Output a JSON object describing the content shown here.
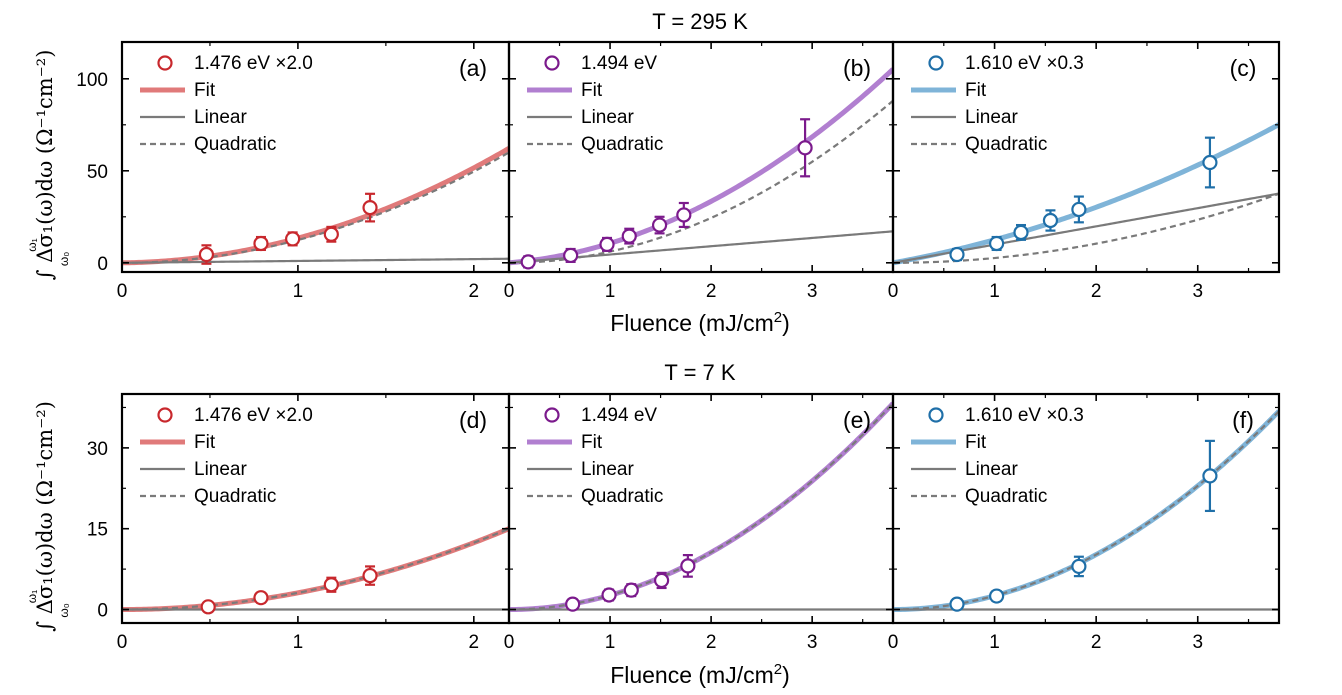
{
  "figure": {
    "xlabel": "Fluence (mJ/cm",
    "xlabel_sup": "2",
    "xlabel_close": ")",
    "ylabel": "∫ Δσ₁(ω)dω (Ω⁻¹cm⁻²)",
    "ylabel_int_lower": "ω₀",
    "ylabel_int_upper": "ω₁"
  },
  "colors": {
    "red": "#c8282d",
    "red_fit": "#e07a7a",
    "purple": "#7b1a8c",
    "purple_fit": "#b17fd0",
    "blue": "#1f6fa8",
    "blue_fit": "#7fb4d8",
    "linear": "#7a7a7a",
    "quadratic": "#7a7a7a"
  },
  "chart_data": [
    {
      "row_title": "T = 295 K",
      "ylim": [
        -5,
        120
      ],
      "yticks": [
        "0",
        "50",
        "100"
      ],
      "ytick_values": [
        0,
        50,
        100
      ],
      "panels": [
        {
          "id": "a",
          "label": "(a)",
          "type": "scatter",
          "legend": [
            "1.476 eV ×2.0",
            "Fit",
            "Linear",
            "Quadratic"
          ],
          "color": "red",
          "xlim": [
            0,
            2.2
          ],
          "xticks": [
            "0",
            "1",
            "2"
          ],
          "xtick_values": [
            0,
            1,
            2
          ],
          "points": [
            {
              "x": 0.48,
              "y": 4.5,
              "err": 5
            },
            {
              "x": 0.79,
              "y": 10.5,
              "err": 3.5
            },
            {
              "x": 0.97,
              "y": 13,
              "err": 3.5
            },
            {
              "x": 1.19,
              "y": 15.5,
              "err": 4
            },
            {
              "x": 1.41,
              "y": 30,
              "err": 7.5
            }
          ],
          "fit": {
            "a": 1.0,
            "b": 12.4
          },
          "linear": {
            "a": 1.0
          },
          "quadratic": {
            "b": 12.4
          }
        },
        {
          "id": "b",
          "label": "(b)",
          "type": "scatter",
          "legend": [
            "1.494 eV",
            "Fit",
            "Linear",
            "Quadratic"
          ],
          "color": "purple",
          "xlim": [
            0,
            3.8
          ],
          "xticks": [
            "0",
            "1",
            "2",
            "3"
          ],
          "xtick_values": [
            0,
            1,
            2,
            3
          ],
          "points": [
            {
              "x": 0.19,
              "y": 0.5,
              "err": 3
            },
            {
              "x": 0.61,
              "y": 4,
              "err": 3.5
            },
            {
              "x": 0.97,
              "y": 10,
              "err": 3.5
            },
            {
              "x": 1.19,
              "y": 14.5,
              "err": 4
            },
            {
              "x": 1.49,
              "y": 20.5,
              "err": 4.5
            },
            {
              "x": 1.73,
              "y": 26,
              "err": 6.5
            },
            {
              "x": 2.93,
              "y": 62.5,
              "err": 15.5
            }
          ],
          "fit": {
            "a": 4.5,
            "b": 6.1
          },
          "linear": {
            "a": 4.5
          },
          "quadratic": {
            "b": 6.1
          }
        },
        {
          "id": "c",
          "label": "(c)",
          "type": "scatter",
          "legend": [
            "1.610 eV ×0.3",
            "Fit",
            "Linear",
            "Quadratic"
          ],
          "color": "blue",
          "xlim": [
            0,
            3.8
          ],
          "xticks": [
            "0",
            "1",
            "2",
            "3"
          ],
          "xtick_values": [
            0,
            1,
            2,
            3
          ],
          "points": [
            {
              "x": 0.63,
              "y": 4.5,
              "err": 3
            },
            {
              "x": 1.02,
              "y": 10.5,
              "err": 3.5
            },
            {
              "x": 1.26,
              "y": 16.5,
              "err": 4
            },
            {
              "x": 1.55,
              "y": 23,
              "err": 5.5
            },
            {
              "x": 1.83,
              "y": 29,
              "err": 7
            },
            {
              "x": 3.12,
              "y": 54.5,
              "err": 13.5
            }
          ],
          "fit": {
            "a": 9.9,
            "b": 2.6
          },
          "linear": {
            "a": 9.9
          },
          "quadratic": {
            "b": 2.6
          }
        }
      ]
    },
    {
      "row_title": "T = 7 K",
      "ylim": [
        -2.5,
        40
      ],
      "yticks": [
        "0",
        "15",
        "30"
      ],
      "ytick_values": [
        0,
        15,
        30
      ],
      "panels": [
        {
          "id": "d",
          "label": "(d)",
          "type": "scatter",
          "legend": [
            "1.476 eV ×2.0",
            "Fit",
            "Linear",
            "Quadratic"
          ],
          "color": "red",
          "xlim": [
            0,
            2.2
          ],
          "xticks": [
            "0",
            "1",
            "2"
          ],
          "xtick_values": [
            0,
            1,
            2
          ],
          "points": [
            {
              "x": 0.49,
              "y": 0.5,
              "err": 0.8
            },
            {
              "x": 0.79,
              "y": 2.2,
              "err": 0.9
            },
            {
              "x": 1.19,
              "y": 4.6,
              "err": 1.3
            },
            {
              "x": 1.41,
              "y": 6.3,
              "err": 1.7
            }
          ],
          "fit": {
            "a": 0,
            "b": 3.1
          },
          "linear": {
            "a": 0
          },
          "quadratic": {
            "b": 3.1
          }
        },
        {
          "id": "e",
          "label": "(e)",
          "type": "scatter",
          "legend": [
            "1.494 eV",
            "Fit",
            "Linear",
            "Quadratic"
          ],
          "color": "purple",
          "xlim": [
            0,
            3.8
          ],
          "xticks": [
            "0",
            "1",
            "2",
            "3"
          ],
          "xtick_values": [
            0,
            1,
            2,
            3
          ],
          "points": [
            {
              "x": 0.63,
              "y": 1.0,
              "err": 0.9
            },
            {
              "x": 0.99,
              "y": 2.7,
              "err": 1.0
            },
            {
              "x": 1.21,
              "y": 3.6,
              "err": 1.1
            },
            {
              "x": 1.51,
              "y": 5.4,
              "err": 1.4
            },
            {
              "x": 1.77,
              "y": 8.1,
              "err": 2.0
            }
          ],
          "fit": {
            "a": 0,
            "b": 2.65
          },
          "linear": {
            "a": 0
          },
          "quadratic": {
            "b": 2.65
          }
        },
        {
          "id": "f",
          "label": "(f)",
          "type": "scatter",
          "legend": [
            "1.610 eV ×0.3",
            "Fit",
            "Linear",
            "Quadratic"
          ],
          "color": "blue",
          "xlim": [
            0,
            3.8
          ],
          "xticks": [
            "0",
            "1",
            "2",
            "3"
          ],
          "xtick_values": [
            0,
            1,
            2,
            3
          ],
          "points": [
            {
              "x": 0.63,
              "y": 1.0,
              "err": 0.9
            },
            {
              "x": 1.02,
              "y": 2.5,
              "err": 0.9
            },
            {
              "x": 1.83,
              "y": 8.0,
              "err": 1.8
            },
            {
              "x": 3.12,
              "y": 24.8,
              "err": 6.5
            }
          ],
          "fit": {
            "a": 0,
            "b": 2.55
          },
          "linear": {
            "a": 0
          },
          "quadratic": {
            "b": 2.55
          }
        }
      ]
    }
  ]
}
